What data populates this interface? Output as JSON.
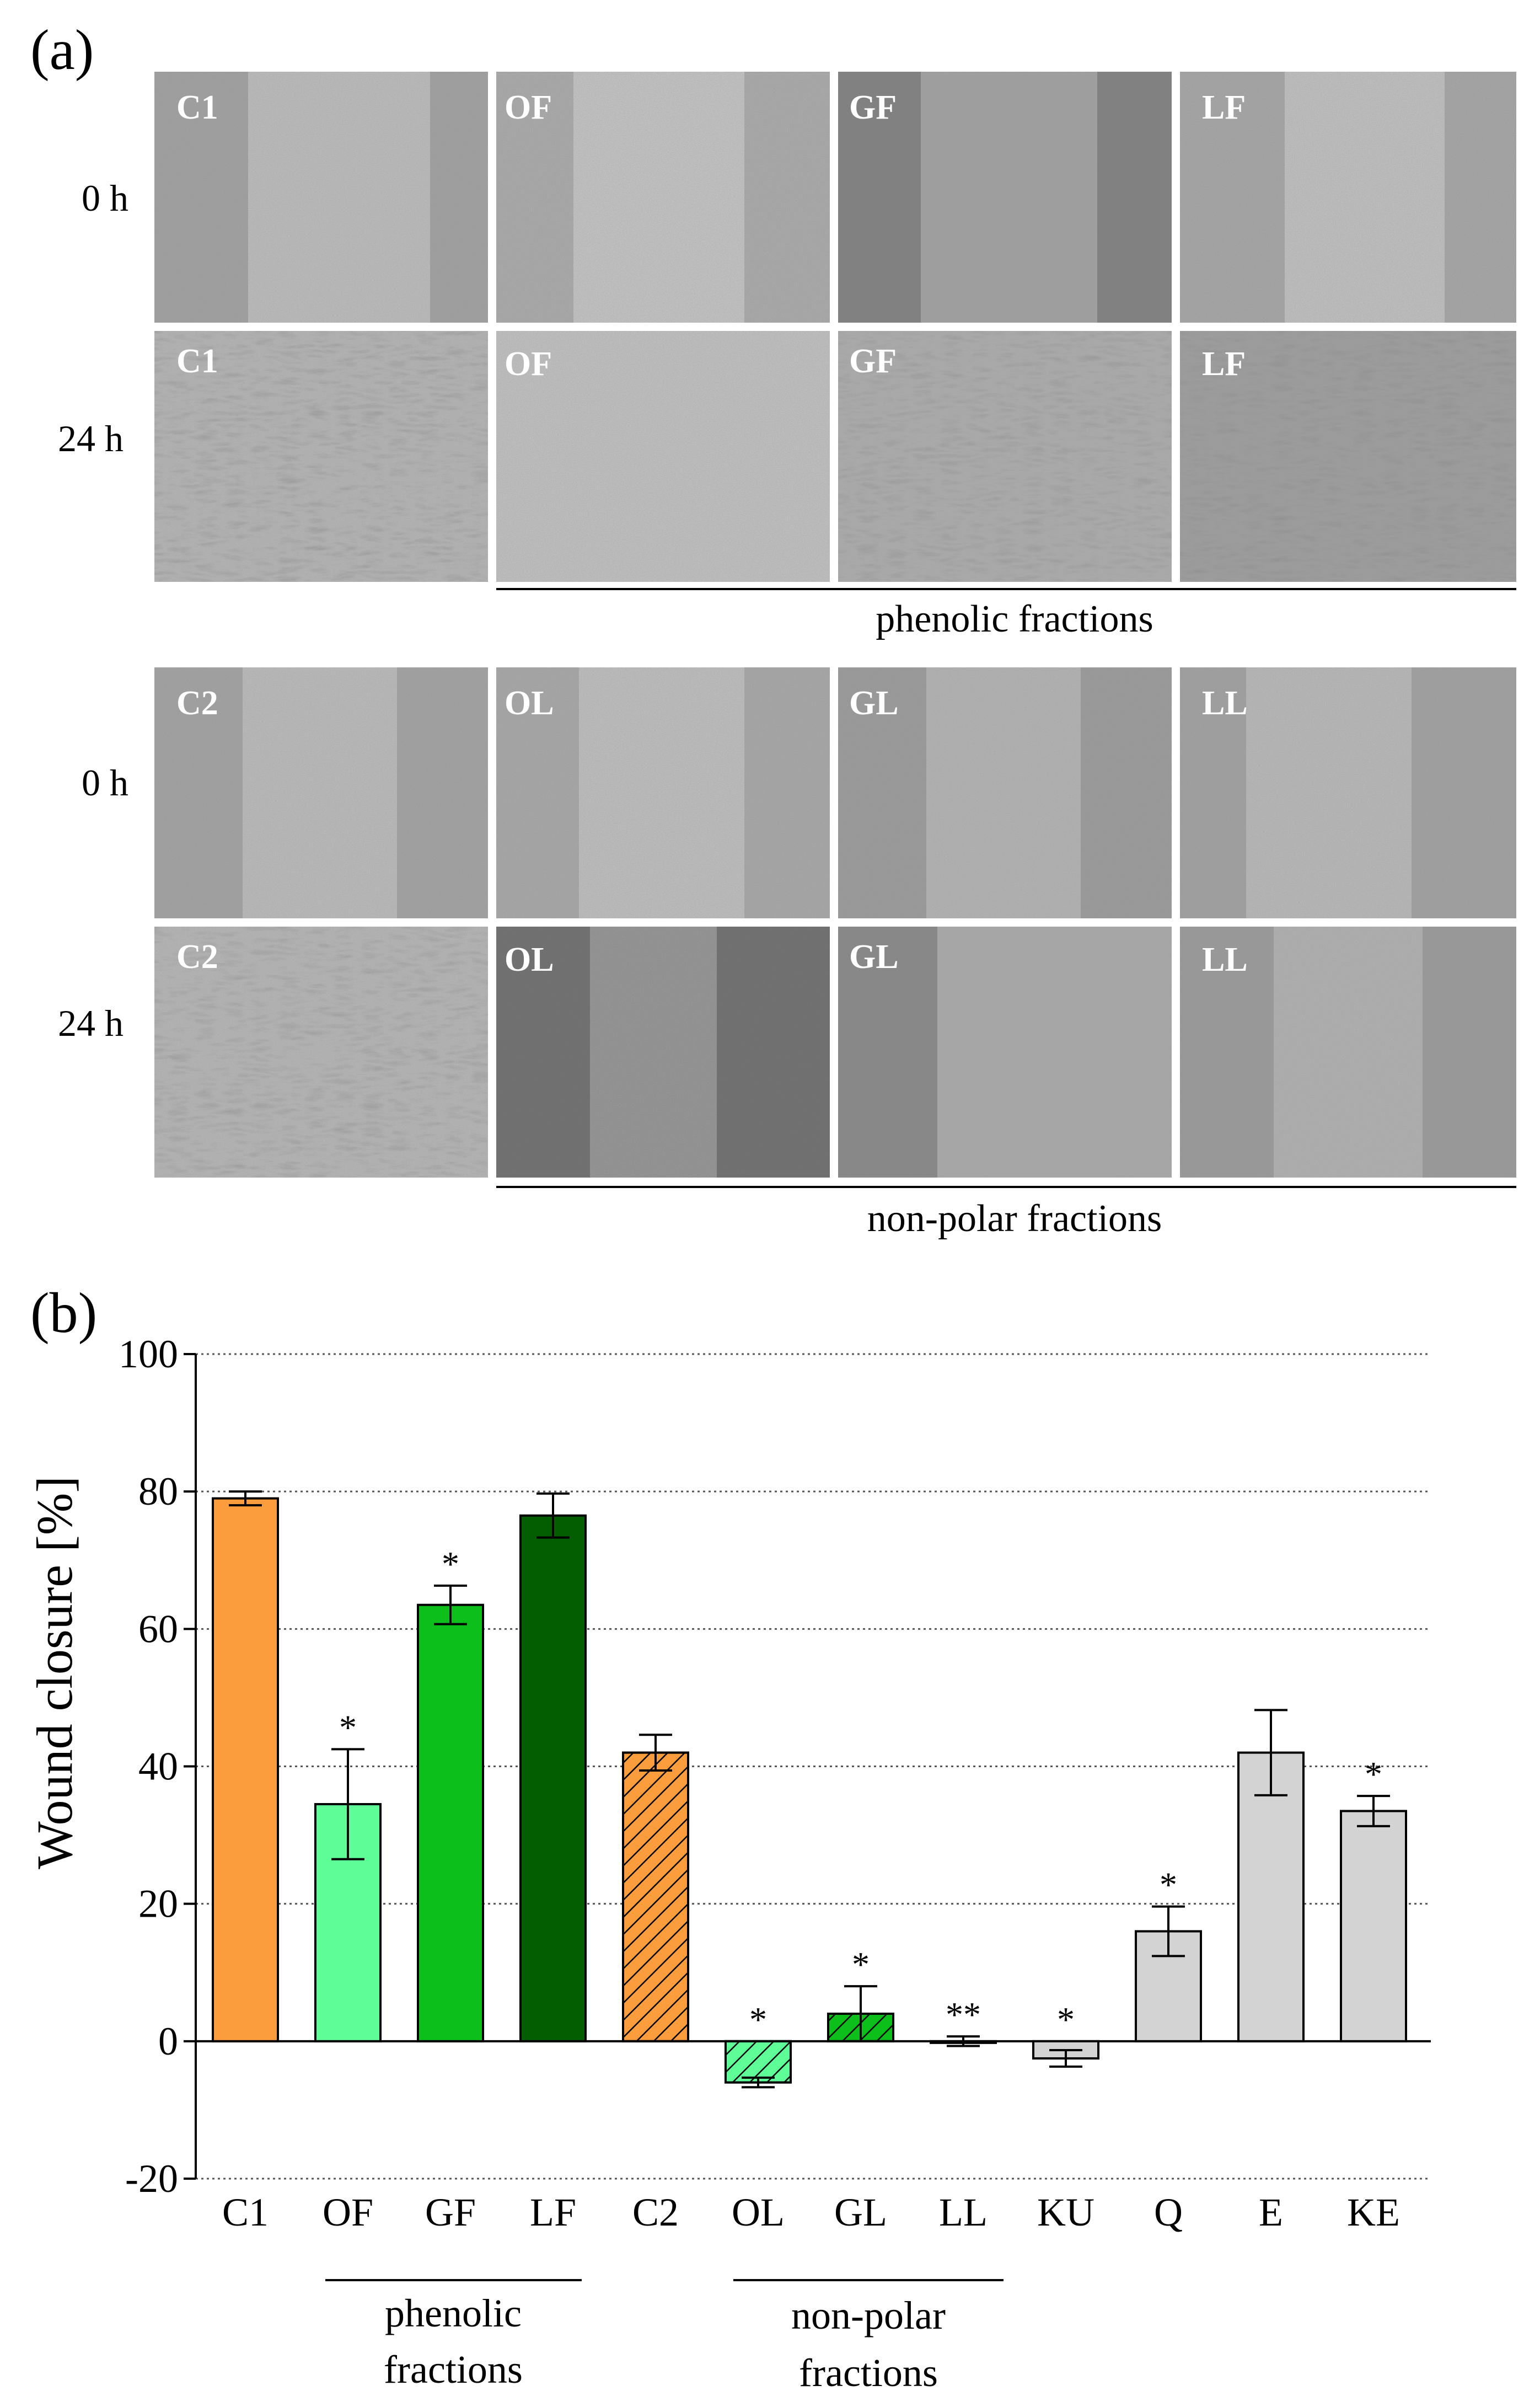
{
  "panel_a": {
    "label": "(a)",
    "time_labels": [
      "0 h",
      "24 h"
    ],
    "blocks": [
      {
        "id": "phenolic",
        "group_label": "phenolic fractions",
        "rows": [
          {
            "time": "0 h",
            "tiles": [
              "C1",
              "OF",
              "GF",
              "LF"
            ]
          },
          {
            "time": "24 h",
            "tiles": [
              "C1",
              "OF",
              "GF",
              "LF"
            ]
          }
        ]
      },
      {
        "id": "nonpolar",
        "group_label": "non-polar fractions",
        "rows": [
          {
            "time": "0 h",
            "tiles": [
              "C2",
              "OL",
              "GL",
              "LL"
            ]
          },
          {
            "time": "24 h",
            "tiles": [
              "C2",
              "OL",
              "GL",
              "LL"
            ]
          }
        ]
      }
    ]
  },
  "panel_b": {
    "label": "(b)",
    "group_labels": {
      "phenolic": [
        "phenolic",
        "fractions"
      ],
      "nonpolar": [
        "non-polar",
        "fractions"
      ]
    }
  },
  "chart_data": {
    "type": "bar",
    "title": "",
    "xlabel": "",
    "ylabel": "Wound closure [%]",
    "ylim": [
      -20,
      100
    ],
    "yticks": [
      -20,
      0,
      20,
      40,
      60,
      80,
      100
    ],
    "grid": true,
    "categories": [
      "C1",
      "OF",
      "GF",
      "LF",
      "C2",
      "OL",
      "GL",
      "LL",
      "KU",
      "Q",
      "E",
      "KE"
    ],
    "values": [
      79,
      34.5,
      63.5,
      76.5,
      42,
      -6,
      4,
      0,
      -2.5,
      16,
      42,
      33.5
    ],
    "errors": [
      1,
      8,
      2.8,
      3.2,
      2.6,
      0.7,
      4,
      0.7,
      1.2,
      3.6,
      6.2,
      2.2
    ],
    "significance": [
      "",
      "*",
      "*",
      "",
      "",
      "*",
      "*",
      "**",
      "*",
      "*",
      "",
      "*"
    ],
    "colors": [
      "#fb9d3c",
      "#5efd98",
      "#0dbf1b",
      "#025e00",
      "#fb9d3c",
      "#5efd98",
      "#0dbf1b",
      "#d3d3d3",
      "#d3d3d3",
      "#d3d3d3",
      "#d3d3d3",
      "#d3d3d3"
    ],
    "hatched": [
      false,
      false,
      false,
      false,
      true,
      true,
      true,
      false,
      false,
      false,
      false,
      false
    ]
  }
}
